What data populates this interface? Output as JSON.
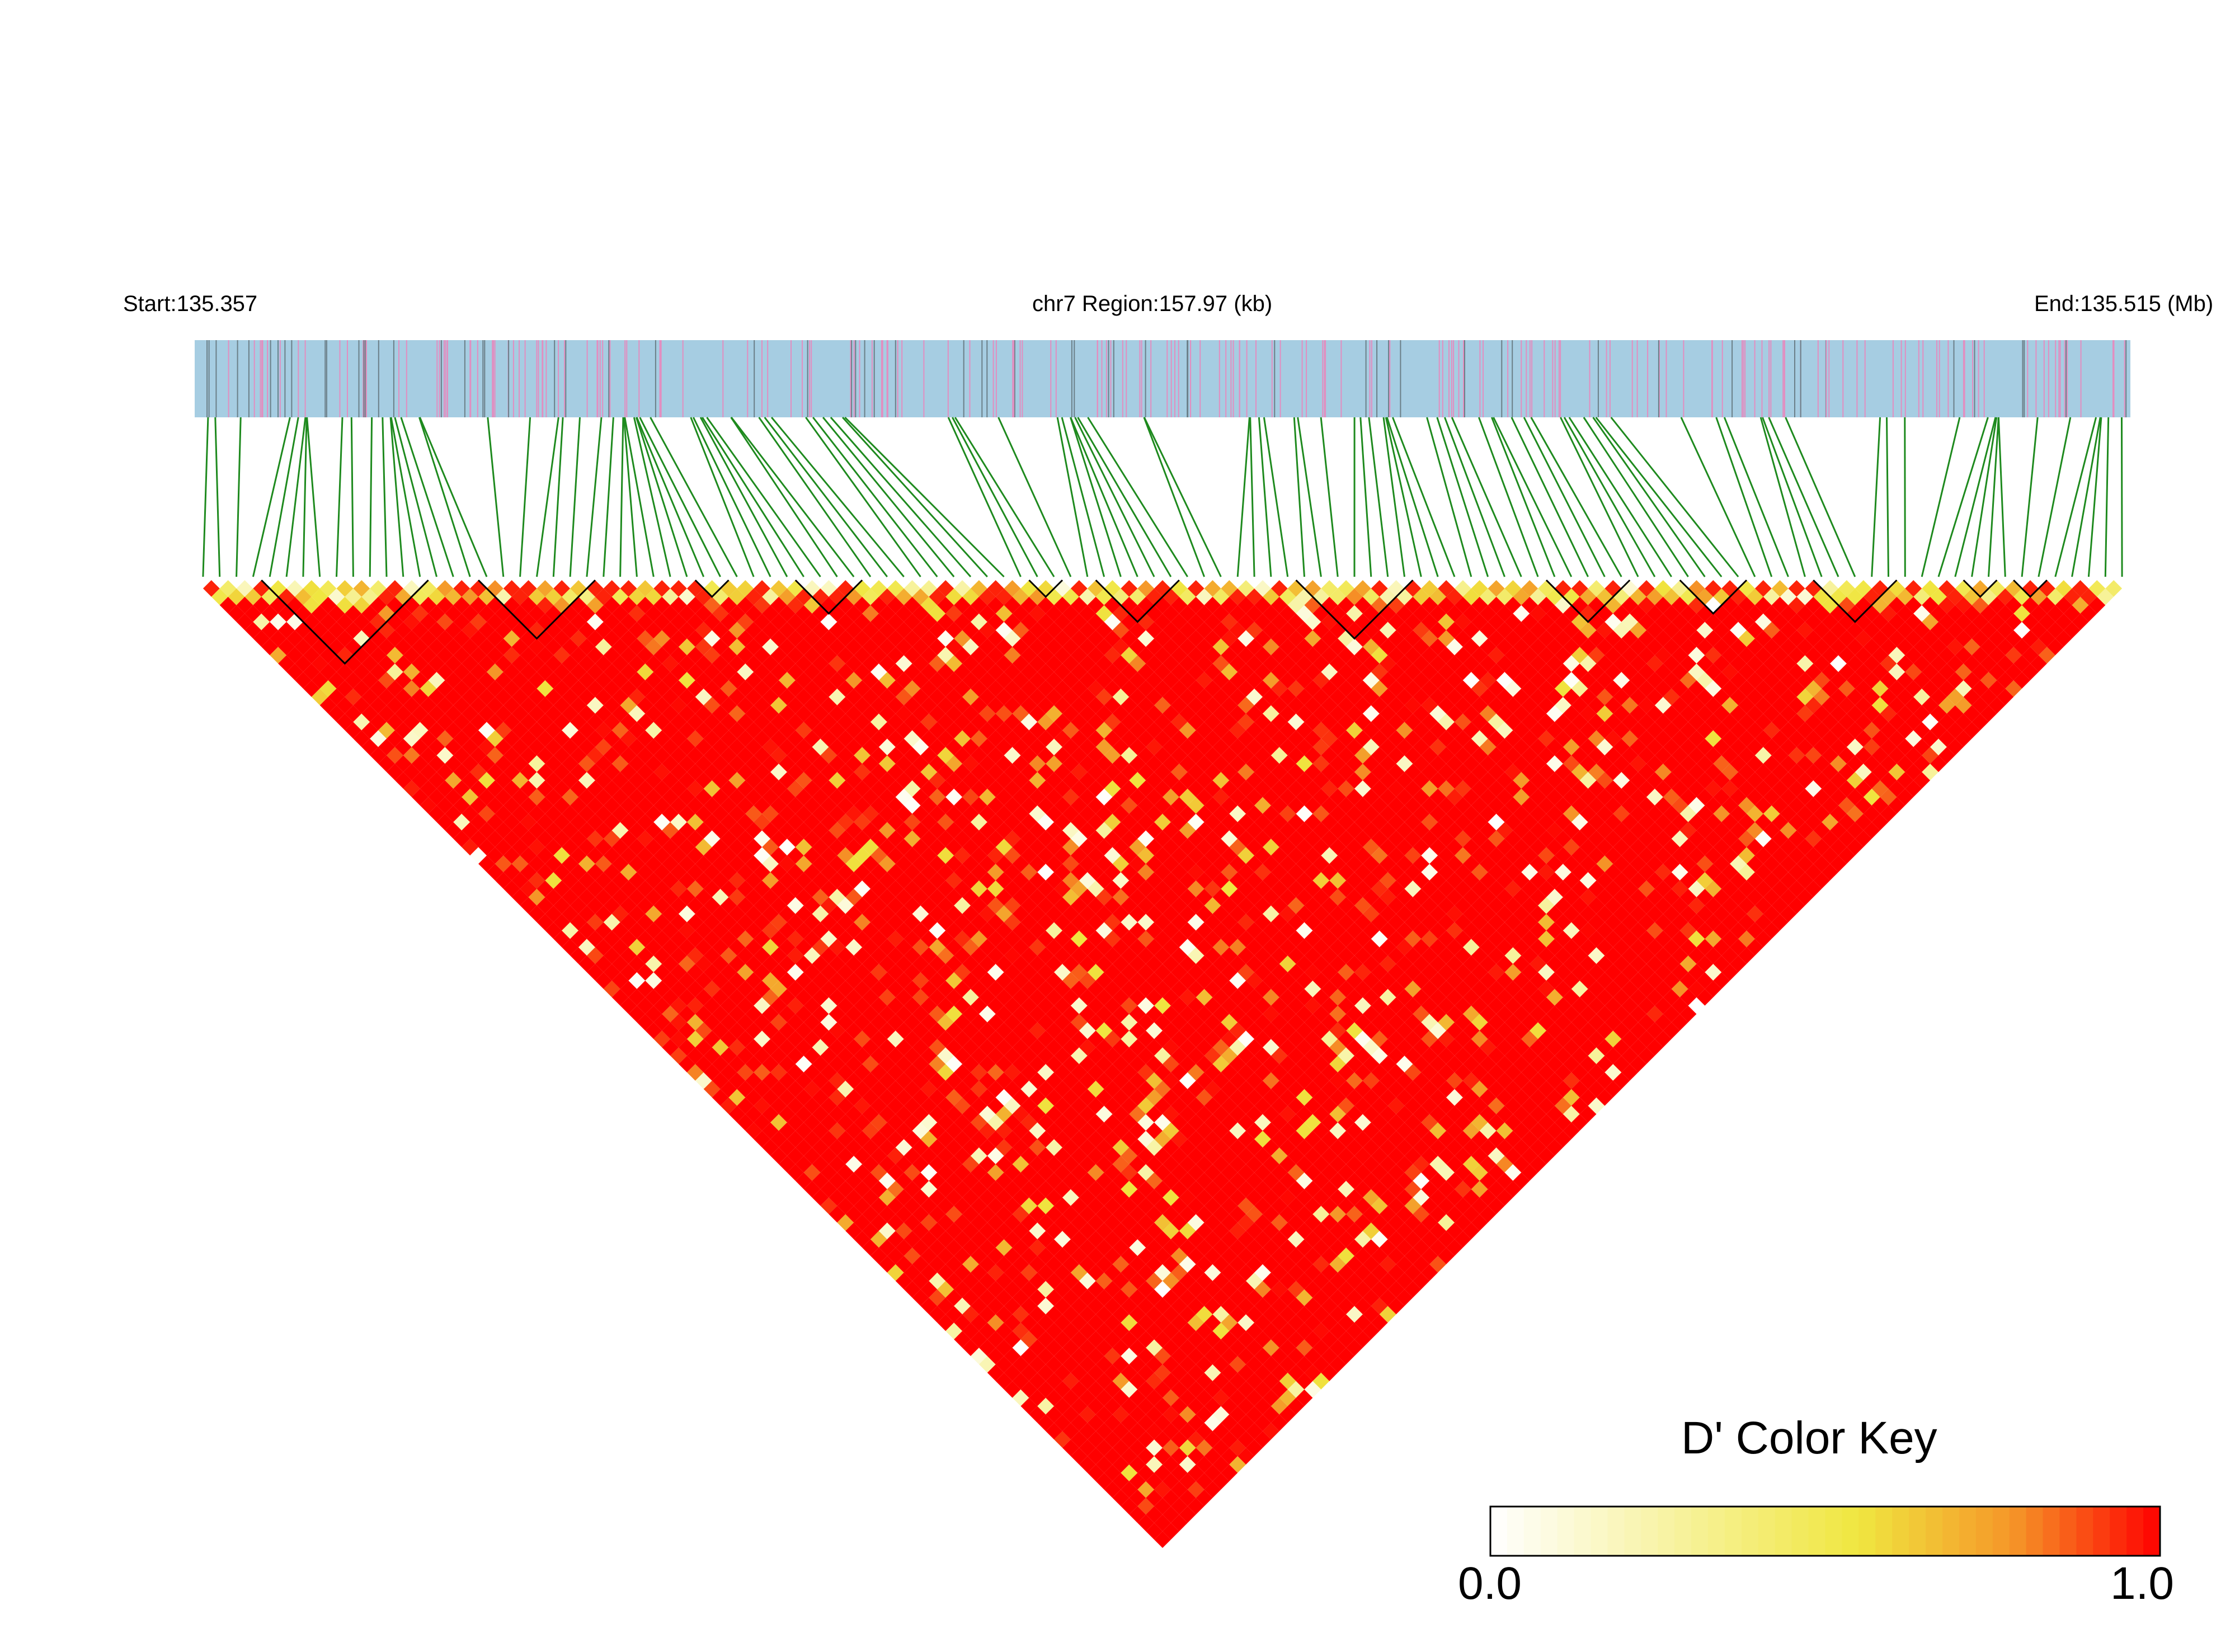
{
  "header": {
    "start_label": "Start:135.357",
    "region_label": "chr7 Region:157.97 (kb)",
    "end_label": "End:135.515 (Mb)"
  },
  "legend": {
    "title": "D' Color Key",
    "min_label": "0.0",
    "max_label": "1.0"
  },
  "colors": {
    "track_background": "#a6cde2",
    "snp_marker_pink": "#e28ec0",
    "snp_marker_gray": "#6b7f88",
    "connector_green": "#1e8a1e",
    "high_ld": "#ff0000",
    "mid_ld": "#f0e640",
    "low_ld": "#ffffff"
  },
  "chart_data": {
    "type": "heatmap",
    "description_units": "pairwise D' between SNPs, 0 to 1",
    "region": {
      "chromosome": "chr7",
      "start_mb": 135.357,
      "end_mb": 135.515,
      "length_kb": 157.97
    },
    "value_range": [
      0.0,
      1.0
    ],
    "dominant_value": 1.0,
    "haplotype_blocks_snp_index": [
      [
        4,
        13
      ],
      [
        17,
        23
      ],
      [
        30,
        31
      ],
      [
        36,
        39
      ],
      [
        50,
        51
      ],
      [
        54,
        58
      ],
      [
        66,
        72
      ],
      [
        81,
        85
      ],
      [
        89,
        92
      ],
      [
        97,
        101
      ],
      [
        106,
        107
      ],
      [
        109,
        110
      ]
    ],
    "legend_placement": "bottom-right"
  }
}
